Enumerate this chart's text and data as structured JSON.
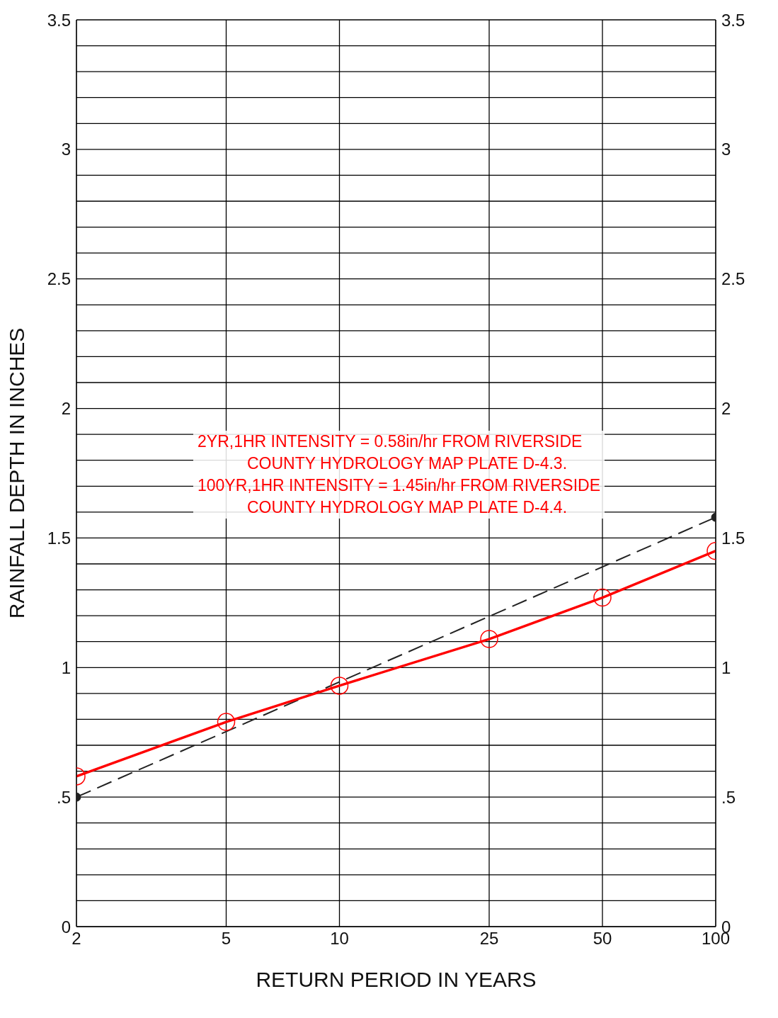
{
  "chart_data": {
    "type": "line",
    "xlabel": "RETURN PERIOD IN YEARS",
    "ylabel": "RAINFALL DEPTH IN INCHES",
    "x": [
      2,
      5,
      10,
      25,
      50,
      100
    ],
    "series": [
      {
        "color": "#222222",
        "x": [
          2,
          100
        ],
        "values": [
          0.5,
          1.58
        ],
        "line_style": "dashed",
        "marker": "circle"
      },
      {
        "color": "#ff0000",
        "values": [
          0.58,
          0.79,
          0.93,
          1.11,
          1.27,
          1.45
        ],
        "line_style": "solid",
        "marker": "circle"
      }
    ],
    "log": "x",
    "xlim": [
      2,
      100
    ],
    "xticks": [
      2,
      5,
      10,
      25,
      50,
      100
    ],
    "ylim": [
      0,
      3.5
    ],
    "yticks": [
      0,
      {
        "value": 0.1,
        "label": null
      },
      {
        "value": 0.2,
        "label": null
      },
      {
        "value": 0.3,
        "label": null
      },
      {
        "value": 0.4,
        "label": null
      },
      {
        "value": 0.5,
        "label": ".5"
      },
      {
        "value": 0.6,
        "label": null
      },
      {
        "value": 0.7,
        "label": null
      },
      {
        "value": 0.8,
        "label": null
      },
      {
        "value": 0.9,
        "label": null
      },
      1,
      {
        "value": 1.1,
        "label": null
      },
      {
        "value": 1.2,
        "label": null
      },
      {
        "value": 1.3,
        "label": null
      },
      {
        "value": 1.4,
        "label": null
      },
      1.5,
      {
        "value": 1.6,
        "label": null
      },
      {
        "value": 1.7,
        "label": null
      },
      {
        "value": 1.8,
        "label": null
      },
      {
        "value": 1.9,
        "label": null
      },
      2,
      {
        "value": 2.1,
        "label": null
      },
      {
        "value": 2.2,
        "label": null
      },
      {
        "value": 2.3,
        "label": null
      },
      {
        "value": 2.4,
        "label": null
      },
      2.5,
      {
        "value": 2.6,
        "label": null
      },
      {
        "value": 2.7,
        "label": null
      },
      {
        "value": 2.8,
        "label": null
      },
      {
        "value": 2.9,
        "label": null
      },
      3,
      {
        "value": 3.1,
        "label": null
      },
      {
        "value": 3.2,
        "label": null
      },
      {
        "value": 3.3,
        "label": null
      },
      {
        "value": 3.4,
        "label": null
      },
      3.5
    ],
    "y2lim": [
      0,
      3.5
    ],
    "y2ticks": [
      0,
      {
        "value": 0.5,
        "label": ".5"
      },
      1,
      1.5,
      2,
      2.5,
      3,
      3.5
    ],
    "grid": true,
    "annotations": [
      "2YR,1HR INTENSITY = 0.58in/hr FROM RIVERSIDE",
      "COUNTY HYDROLOGY MAP PLATE D-4.3.",
      "100YR,1HR INTENSITY = 1.45in/hr FROM RIVERSIDE",
      "COUNTY HYDROLOGY MAP PLATE D-4.4."
    ]
  }
}
